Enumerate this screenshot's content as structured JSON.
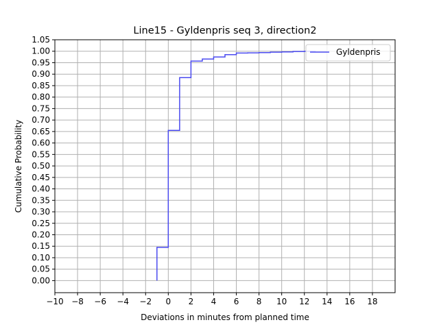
{
  "chart_data": {
    "type": "line",
    "step": true,
    "title": "Line15 - Gyldenpris seq 3, direction2",
    "xlabel": "Deviations in minutes from planned time",
    "ylabel": "Cumulative Probability",
    "xlim": [
      -10,
      20
    ],
    "ylim": [
      -0.0525,
      1.05
    ],
    "xticks": [
      -10,
      -8,
      -6,
      -4,
      -2,
      0,
      2,
      4,
      6,
      8,
      10,
      12,
      14,
      16,
      18
    ],
    "yticks": [
      0.0,
      0.05,
      0.1,
      0.15,
      0.2,
      0.25,
      0.3,
      0.35,
      0.4,
      0.45,
      0.5,
      0.55,
      0.6,
      0.65,
      0.7,
      0.75,
      0.8,
      0.85,
      0.9,
      0.95,
      1.0,
      1.05
    ],
    "xtick_labels": [
      "−10",
      "−8",
      "−6",
      "−4",
      "−2",
      "0",
      "2",
      "4",
      "6",
      "8",
      "10",
      "12",
      "14",
      "16",
      "18"
    ],
    "ytick_labels": [
      "0.00",
      "0.05",
      "0.10",
      "0.15",
      "0.20",
      "0.25",
      "0.30",
      "0.35",
      "0.40",
      "0.45",
      "0.50",
      "0.55",
      "0.60",
      "0.65",
      "0.70",
      "0.75",
      "0.80",
      "0.85",
      "0.90",
      "0.95",
      "1.00",
      "1.05"
    ],
    "grid": true,
    "legend_position": "top-right",
    "series": [
      {
        "name": "Gyldenpris",
        "color": "#4a4af0",
        "x": [
          -1,
          0,
          1,
          2,
          3,
          4,
          5,
          6,
          7,
          8,
          9,
          10,
          11,
          12,
          13
        ],
        "y": [
          0.145,
          0.655,
          0.885,
          0.957,
          0.966,
          0.975,
          0.985,
          0.992,
          0.993,
          0.994,
          0.996,
          0.997,
          0.999,
          1.0,
          1.0
        ]
      }
    ]
  }
}
